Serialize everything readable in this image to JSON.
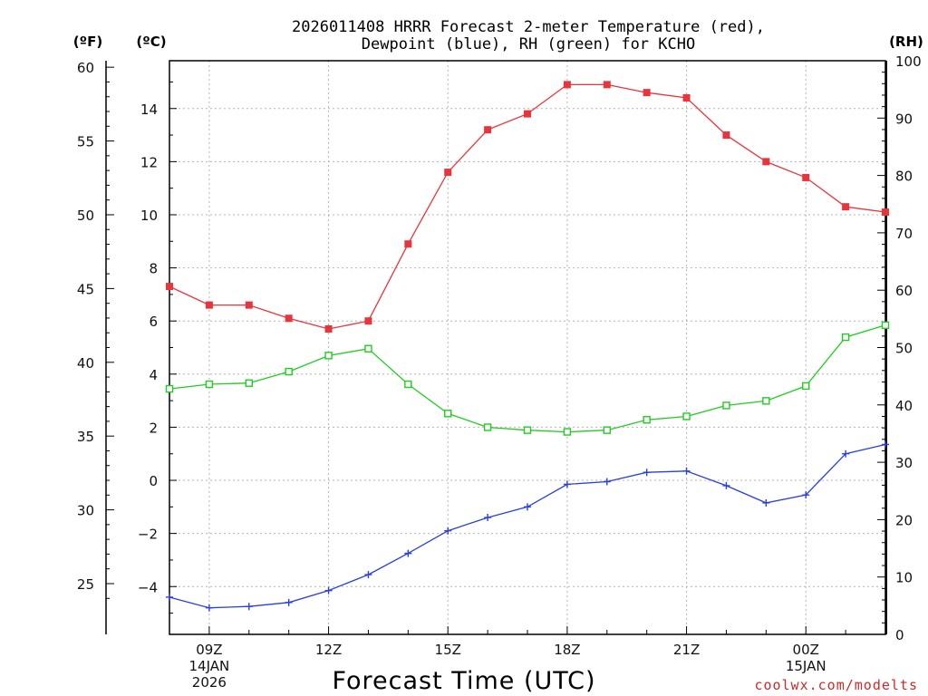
{
  "chart_data": {
    "type": "line",
    "title_line1": "2026011408 HRRR Forecast 2-meter Temperature (red),",
    "title_line2": "Dewpoint (blue), RH (green) for KCHO",
    "xlabel": "Forecast Time (UTC)",
    "credit": "coolwx.com/modelts",
    "units": {
      "fahrenheit": "(ºF)",
      "celsius": "(ºC)",
      "rh": "(RH)"
    },
    "x_hours": [
      8,
      9,
      10,
      11,
      12,
      13,
      14,
      15,
      16,
      17,
      18,
      19,
      20,
      21,
      22,
      23,
      24,
      25,
      26
    ],
    "x_ticks": [
      {
        "hour": 9,
        "lines": [
          "09Z",
          "14JAN",
          "2026"
        ]
      },
      {
        "hour": 12,
        "lines": [
          "12Z"
        ]
      },
      {
        "hour": 15,
        "lines": [
          "15Z"
        ]
      },
      {
        "hour": 18,
        "lines": [
          "18Z"
        ]
      },
      {
        "hour": 21,
        "lines": [
          "21Z"
        ]
      },
      {
        "hour": 24,
        "lines": [
          "00Z",
          "15JAN"
        ]
      }
    ],
    "x_range": [
      8,
      26
    ],
    "celsius_range": [
      -5.8,
      15.8
    ],
    "celsius_ticks": [
      "14",
      "12",
      "10",
      "8",
      "6",
      "4",
      "2",
      "0",
      "−2",
      "−4"
    ],
    "celsius_tick_values": [
      14,
      12,
      10,
      8,
      6,
      4,
      2,
      0,
      -2,
      -4
    ],
    "fahrenheit_ticks": [
      "60",
      "55",
      "50",
      "45",
      "40",
      "35",
      "30",
      "25"
    ],
    "fahrenheit_tick_values": [
      60,
      55,
      50,
      45,
      40,
      35,
      30,
      25
    ],
    "rh_range": [
      0,
      100
    ],
    "rh_ticks": [
      "100",
      "90",
      "80",
      "70",
      "60",
      "50",
      "40",
      "30",
      "20",
      "10",
      "0"
    ],
    "rh_tick_values": [
      100,
      90,
      80,
      70,
      60,
      50,
      40,
      30,
      20,
      10,
      0
    ],
    "series": [
      {
        "name": "Temperature",
        "axis": "celsius",
        "marker": "filled-square",
        "color": "#e8343a",
        "values": [
          7.3,
          6.6,
          6.6,
          6.1,
          5.7,
          6.0,
          8.9,
          11.6,
          13.2,
          13.8,
          14.9,
          14.9,
          14.6,
          14.4,
          13.0,
          12.0,
          11.4,
          10.3,
          10.1
        ]
      },
      {
        "name": "Dewpoint",
        "axis": "celsius",
        "marker": "plus",
        "color": "#2a3fe0",
        "values": [
          -4.4,
          -4.8,
          -4.75,
          -4.6,
          -4.15,
          -3.55,
          -2.75,
          -1.9,
          -1.4,
          -1.0,
          -0.15,
          -0.05,
          0.3,
          0.35,
          -0.2,
          -0.85,
          -0.55,
          1.0,
          1.35
        ]
      },
      {
        "name": "RH",
        "axis": "rh",
        "marker": "open-square",
        "color": "#22cc22",
        "values": [
          42.8,
          43.6,
          43.8,
          45.8,
          48.6,
          49.8,
          43.6,
          38.5,
          36.1,
          35.6,
          35.3,
          35.6,
          37.4,
          38.0,
          39.9,
          40.7,
          43.3,
          51.8,
          53.9
        ]
      }
    ]
  }
}
